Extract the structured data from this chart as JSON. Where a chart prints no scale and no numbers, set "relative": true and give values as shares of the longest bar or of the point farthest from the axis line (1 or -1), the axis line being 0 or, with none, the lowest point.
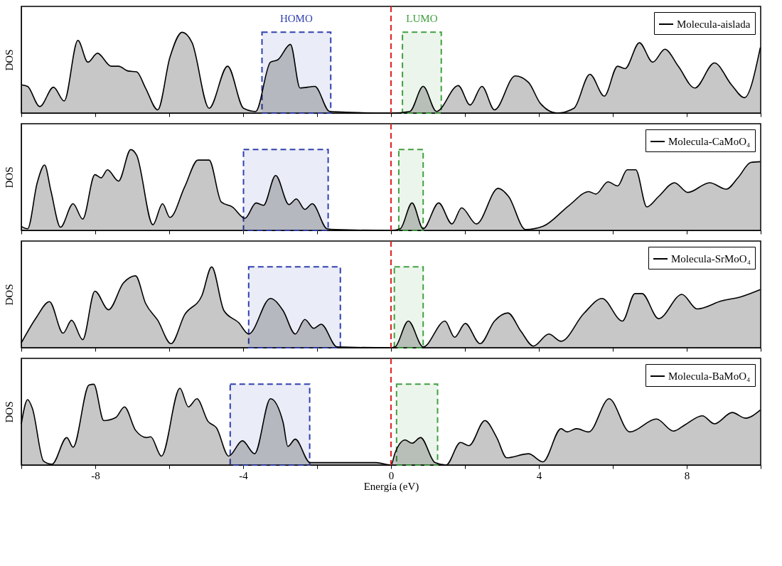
{
  "chart_data": [
    {
      "type": "area",
      "relative": true,
      "ylabel": "DOS",
      "legend": "top right",
      "tick_labels": false,
      "xlim": [
        -10,
        10
      ],
      "xticks": [
        {
          "value": -10,
          "label": null
        },
        -8,
        {
          "value": -6,
          "label": null
        },
        -4,
        {
          "value": -2,
          "label": null
        },
        0,
        {
          "value": 2,
          "label": null
        },
        4,
        {
          "value": 6,
          "label": null
        },
        8,
        {
          "value": 10,
          "label": null
        }
      ],
      "x": [
        -10.0,
        -9.83,
        -9.5,
        -9.13,
        -8.84,
        -8.47,
        -8.2,
        -7.94,
        -7.57,
        -7.37,
        -7.11,
        -6.88,
        -6.64,
        -6.31,
        -5.98,
        -5.65,
        -5.38,
        -4.92,
        -4.42,
        -3.99,
        -3.66,
        -3.26,
        -3.06,
        -2.72,
        -2.46,
        -2.06,
        -1.66,
        0,
        0.51,
        0.87,
        1.23,
        1.82,
        2.14,
        2.46,
        2.8,
        3.36,
        3.72,
        4.04,
        4.49,
        4.95,
        5.38,
        5.77,
        6.13,
        6.33,
        6.72,
        7.08,
        7.41,
        7.77,
        8.22,
        8.75,
        9.21,
        9.56,
        9.99
      ],
      "series": [
        {
          "name": "Molecula-aislada",
          "color": "#000000",
          "values": [
            0.35,
            0.33,
            0.08,
            0.32,
            0.15,
            0.9,
            0.63,
            0.74,
            0.58,
            0.58,
            0.52,
            0.51,
            0.31,
            0.04,
            0.69,
            1.0,
            0.87,
            0.06,
            0.58,
            0.06,
            0.02,
            0.63,
            0.66,
            0.85,
            0.31,
            0.33,
            0.02,
            0,
            0.02,
            0.33,
            0.02,
            0.34,
            0.1,
            0.33,
            0.04,
            0.46,
            0.38,
            0.12,
            0,
            0.06,
            0.48,
            0.21,
            0.58,
            0.55,
            0.87,
            0.63,
            0.79,
            0.58,
            0.31,
            0.62,
            0.35,
            0.19,
            0.81
          ]
        }
      ],
      "ref_lines": [
        {
          "axis": "x",
          "value": 0,
          "color": "#e02020",
          "line_style": "dashed"
        }
      ],
      "bands": [
        {
          "axis": "x",
          "from": -3.49,
          "to": -1.63,
          "label": "HOMO",
          "color": "#3040b0"
        },
        {
          "axis": "x",
          "from": 0.31,
          "to": 1.36,
          "label": "LUMO",
          "color": "#40a040"
        }
      ]
    },
    {
      "type": "area",
      "relative": true,
      "ylabel": "DOS",
      "legend": "top right",
      "tick_labels": false,
      "xlim": [
        -10,
        10
      ],
      "xticks": [
        {
          "value": -10,
          "label": null
        },
        -8,
        {
          "value": -6,
          "label": null
        },
        -4,
        {
          "value": -2,
          "label": null
        },
        0,
        {
          "value": 2,
          "label": null
        },
        4,
        {
          "value": 6,
          "label": null
        },
        8,
        {
          "value": 10,
          "label": null
        }
      ],
      "x": [
        -10.0,
        -9.83,
        -9.57,
        -9.37,
        -9.2,
        -8.94,
        -8.6,
        -8.34,
        -8.01,
        -7.84,
        -7.67,
        -7.37,
        -7.04,
        -6.88,
        -6.44,
        -6.18,
        -5.98,
        -5.58,
        -5.22,
        -4.92,
        -4.59,
        -4.29,
        -3.95,
        -3.65,
        -3.45,
        -3.12,
        -2.76,
        -2.56,
        -2.33,
        -2.13,
        -1.73,
        -1.5,
        0,
        0.25,
        0.57,
        0.87,
        1.29,
        1.65,
        1.91,
        2.31,
        2.9,
        3.18,
        3.64,
        4.11,
        4.82,
        5.35,
        5.54,
        5.87,
        6.13,
        6.39,
        6.62,
        6.92,
        7.24,
        7.67,
        8.03,
        8.62,
        9.07,
        9.4,
        9.73,
        9.99
      ],
      "series": [
        {
          "name": "Molecula-CaMoO₄",
          "color": "#000000",
          "values": [
            0.05,
            0.02,
            0.59,
            0.81,
            0.49,
            0.04,
            0.33,
            0.14,
            0.69,
            0.65,
            0.75,
            0.61,
            1.0,
            0.93,
            0.07,
            0.33,
            0.16,
            0.54,
            0.87,
            0.87,
            0.35,
            0.29,
            0.15,
            0.34,
            0.31,
            0.68,
            0.32,
            0.39,
            0.26,
            0.33,
            0.02,
            0.01,
            0,
            0.02,
            0.34,
            0.02,
            0.34,
            0.08,
            0.28,
            0.08,
            0.52,
            0.42,
            0.01,
            0.05,
            0.31,
            0.48,
            0.45,
            0.6,
            0.55,
            0.75,
            0.75,
            0.29,
            0.42,
            0.59,
            0.47,
            0.59,
            0.51,
            0.66,
            0.84,
            0.85
          ]
        }
      ],
      "ref_lines": [
        {
          "axis": "x",
          "value": 0,
          "color": "#e02020",
          "line_style": "dashed"
        }
      ],
      "bands": [
        {
          "axis": "x",
          "from": -3.99,
          "to": -1.7,
          "color": "#3040b0"
        },
        {
          "axis": "x",
          "from": 0.21,
          "to": 0.87,
          "color": "#40a040"
        }
      ]
    },
    {
      "type": "area",
      "relative": true,
      "ylabel": "DOS",
      "legend": "top right",
      "tick_labels": false,
      "xlim": [
        -10,
        10
      ],
      "xticks": [
        {
          "value": -10,
          "label": null
        },
        -8,
        {
          "value": -6,
          "label": null
        },
        -4,
        {
          "value": -2,
          "label": null
        },
        0,
        {
          "value": 2,
          "label": null
        },
        4,
        {
          "value": 6,
          "label": null
        },
        8,
        {
          "value": 10,
          "label": null
        }
      ],
      "x": [
        -10.0,
        -9.6,
        -9.24,
        -8.87,
        -8.64,
        -8.34,
        -8.01,
        -7.64,
        -7.24,
        -6.91,
        -6.64,
        -6.31,
        -5.95,
        -5.58,
        -5.12,
        -4.85,
        -4.52,
        -4.12,
        -3.85,
        -3.26,
        -2.92,
        -2.59,
        -2.33,
        -2.09,
        -1.89,
        -1.46,
        0,
        0.11,
        0.47,
        0.87,
        1.46,
        1.72,
        2.01,
        2.41,
        2.8,
        3.16,
        3.52,
        3.85,
        4.27,
        4.6,
        5.21,
        5.71,
        6.26,
        6.6,
        6.79,
        7.24,
        7.87,
        8.28,
        8.95,
        9.46,
        9.99
      ],
      "series": [
        {
          "name": "Molecula-SrMoO₄",
          "color": "#000000",
          "values": [
            0.06,
            0.37,
            0.57,
            0.18,
            0.34,
            0.1,
            0.7,
            0.47,
            0.8,
            0.89,
            0.55,
            0.34,
            0.05,
            0.41,
            0.64,
            1.0,
            0.46,
            0.31,
            0.17,
            0.61,
            0.46,
            0.17,
            0.35,
            0.24,
            0.29,
            0.01,
            0,
            0.01,
            0.33,
            0.01,
            0.33,
            0.13,
            0.3,
            0.05,
            0.33,
            0.43,
            0.2,
            0.02,
            0.17,
            0.08,
            0.42,
            0.61,
            0.33,
            0.67,
            0.67,
            0.36,
            0.66,
            0.48,
            0.58,
            0.63,
            0.72
          ]
        }
      ],
      "ref_lines": [
        {
          "axis": "x",
          "value": 0,
          "color": "#e02020",
          "line_style": "dashed"
        }
      ],
      "bands": [
        {
          "axis": "x",
          "from": -3.85,
          "to": -1.37,
          "color": "#3040b0"
        },
        {
          "axis": "x",
          "from": 0.09,
          "to": 0.87,
          "color": "#40a040"
        }
      ]
    },
    {
      "type": "area",
      "relative": true,
      "ylabel": "DOS",
      "xlabel": "Energía (eV)",
      "legend": "top right",
      "tick_labels": "x",
      "xlim": [
        -10,
        10
      ],
      "xticks": [
        {
          "value": -10,
          "label": null
        },
        -8,
        {
          "value": -6,
          "label": null
        },
        -4,
        {
          "value": -2,
          "label": null
        },
        0,
        {
          "value": 2,
          "label": null
        },
        4,
        {
          "value": 6,
          "label": null
        },
        8,
        {
          "value": 10,
          "label": null
        }
      ],
      "x": [
        -10.0,
        -9.83,
        -9.7,
        -9.4,
        -9.17,
        -8.77,
        -8.6,
        -8.17,
        -8.04,
        -7.77,
        -7.44,
        -7.21,
        -6.91,
        -6.61,
        -6.5,
        -6.21,
        -5.71,
        -5.48,
        -5.25,
        -4.95,
        -4.72,
        -4.39,
        -4.02,
        -3.69,
        -3.26,
        -2.92,
        -2.79,
        -2.59,
        -2.19,
        -0.4,
        0,
        0.11,
        0.38,
        0.57,
        0.8,
        1.19,
        1.49,
        1.88,
        2.11,
        2.54,
        2.86,
        3.13,
        3.72,
        4.11,
        4.6,
        4.76,
        5.02,
        5.35,
        5.9,
        6.46,
        7.18,
        7.64,
        7.96,
        8.42,
        8.75,
        9.23,
        9.59,
        9.99
      ],
      "series": [
        {
          "name": "Molecula-BaMoO₄",
          "color": "#000000",
          "values": [
            0.51,
            0.81,
            0.7,
            0.05,
            0.01,
            0.34,
            0.22,
            0.99,
            1.0,
            0.55,
            0.59,
            0.72,
            0.43,
            0.34,
            0.35,
            0.11,
            0.95,
            0.72,
            0.82,
            0.54,
            0.46,
            0.11,
            0.3,
            0.14,
            0.82,
            0.53,
            0.23,
            0.32,
            0.03,
            0.03,
            0,
            0.15,
            0.31,
            0.27,
            0.34,
            0.03,
            0,
            0.28,
            0.24,
            0.55,
            0.34,
            0.09,
            0.14,
            0.04,
            0.45,
            0.41,
            0.45,
            0.41,
            0.82,
            0.41,
            0.57,
            0.42,
            0.5,
            0.61,
            0.51,
            0.65,
            0.58,
            0.68
          ]
        }
      ],
      "ref_lines": [
        {
          "axis": "x",
          "value": 0,
          "color": "#e02020",
          "line_style": "dashed"
        }
      ],
      "bands": [
        {
          "axis": "x",
          "from": -4.35,
          "to": -2.2,
          "color": "#3040b0"
        },
        {
          "axis": "x",
          "from": 0.15,
          "to": 1.26,
          "color": "#40a040"
        }
      ]
    }
  ]
}
